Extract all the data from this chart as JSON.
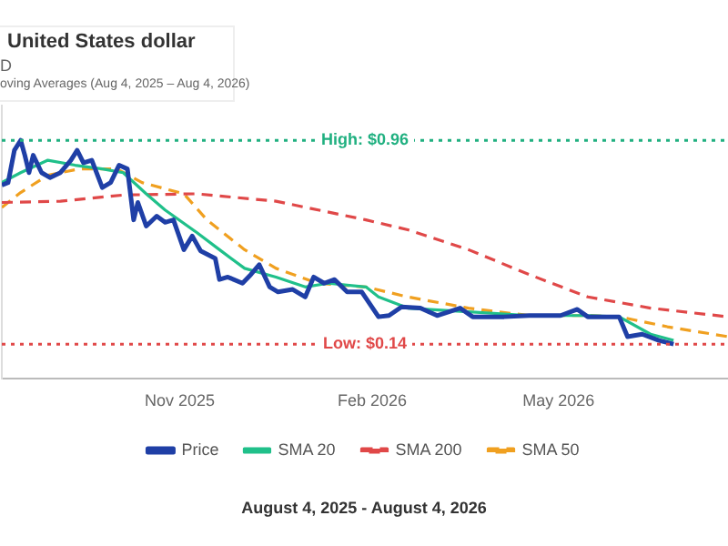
{
  "chart_data": {
    "type": "line",
    "title": "United States dollar",
    "subtitle": "oving Averages (Aug 4, 2025 – Aug 4, 2026)",
    "annotations": [
      "D",
      "August 4, 2025 - August 4, 2026"
    ],
    "xlim": [
      "2025-08-08",
      "2026-07-21"
    ],
    "xticks": [
      {
        "value": "2025-11-01",
        "label": "Nov 2025"
      },
      {
        "value": "2026-02-01",
        "label": "Feb 2026"
      },
      {
        "value": "2026-05-01",
        "label": "May 2026"
      }
    ],
    "ylim": [
      0,
      1.1
    ],
    "yticks": [
      {
        "value": 0.14,
        "label": "Low: $0.14"
      },
      {
        "value": 0.96,
        "label": "High: $0.96"
      }
    ],
    "grid": false,
    "legend": "bottom",
    "ref_lines": [
      {
        "axis": "y",
        "value": 0.96,
        "color": "#20b080",
        "line_style": "dotted"
      },
      {
        "axis": "y",
        "value": 0.14,
        "color": "#e04848",
        "line_style": "dotted"
      }
    ],
    "series": [
      {
        "name": "Price",
        "color": "#1f3fa6",
        "line_style": "solid",
        "x": [
          "2025-08-08",
          "2025-08-11",
          "2025-08-14",
          "2025-08-17",
          "2025-08-19",
          "2025-08-21",
          "2025-08-23",
          "2025-08-27",
          "2025-08-31",
          "2025-09-05",
          "2025-09-10",
          "2025-09-13",
          "2025-09-16",
          "2025-09-20",
          "2025-09-25",
          "2025-09-29",
          "2025-10-03",
          "2025-10-07",
          "2025-10-10",
          "2025-10-12",
          "2025-10-16",
          "2025-10-21",
          "2025-10-25",
          "2025-10-29",
          "2025-11-03",
          "2025-11-07",
          "2025-11-11",
          "2025-11-18",
          "2025-11-20",
          "2025-11-24",
          "2025-12-01",
          "2025-12-05",
          "2025-12-09",
          "2025-12-14",
          "2025-12-18",
          "2025-12-25",
          "2025-12-31",
          "2026-01-04",
          "2026-01-09",
          "2026-01-14",
          "2026-01-20",
          "2026-01-27",
          "2026-02-04",
          "2026-02-09",
          "2026-02-15",
          "2026-02-24",
          "2026-03-04",
          "2026-03-15",
          "2026-03-21",
          "2026-04-05",
          "2026-04-17",
          "2026-05-02",
          "2026-05-10",
          "2026-05-15",
          "2026-05-30",
          "2026-06-03",
          "2026-06-10",
          "2026-06-18",
          "2026-06-25"
        ],
        "values": [
          0.78,
          0.79,
          0.92,
          0.96,
          0.9,
          0.83,
          0.9,
          0.83,
          0.81,
          0.83,
          0.88,
          0.92,
          0.87,
          0.88,
          0.77,
          0.79,
          0.86,
          0.845,
          0.64,
          0.71,
          0.615,
          0.655,
          0.63,
          0.64,
          0.52,
          0.575,
          0.515,
          0.485,
          0.4,
          0.41,
          0.385,
          0.42,
          0.46,
          0.37,
          0.35,
          0.36,
          0.33,
          0.41,
          0.385,
          0.4,
          0.35,
          0.35,
          0.25,
          0.255,
          0.29,
          0.285,
          0.255,
          0.285,
          0.25,
          0.25,
          0.255,
          0.255,
          0.28,
          0.25,
          0.25,
          0.17,
          0.18,
          0.155,
          0.14
        ]
      },
      {
        "name": "SMA 20",
        "color": "#20c08a",
        "line_style": "solid",
        "x": [
          "2025-08-08",
          "2025-08-17",
          "2025-08-30",
          "2025-09-12",
          "2025-09-25",
          "2025-10-05",
          "2025-10-16",
          "2025-10-25",
          "2025-11-09",
          "2025-11-20",
          "2025-12-02",
          "2025-12-17",
          "2025-12-31",
          "2026-01-11",
          "2026-01-29",
          "2026-02-04",
          "2026-02-18",
          "2026-03-19",
          "2026-04-17",
          "2026-05-15",
          "2026-05-30",
          "2026-06-14",
          "2026-06-25"
        ],
        "values": [
          0.79,
          0.83,
          0.88,
          0.86,
          0.845,
          0.83,
          0.745,
          0.68,
          0.59,
          0.52,
          0.445,
          0.41,
          0.37,
          0.385,
          0.37,
          0.33,
          0.285,
          0.27,
          0.255,
          0.255,
          0.25,
          0.18,
          0.155
        ]
      },
      {
        "name": "SMA 200",
        "color": "#e04848",
        "line_style": "dashed",
        "x": [
          "2025-08-08",
          "2025-09-05",
          "2025-10-05",
          "2025-11-09",
          "2025-12-17",
          "2026-01-29",
          "2026-02-18",
          "2026-03-19",
          "2026-04-17",
          "2026-05-15",
          "2026-06-14",
          "2026-07-21"
        ],
        "values": [
          0.71,
          0.715,
          0.74,
          0.745,
          0.715,
          0.64,
          0.6,
          0.52,
          0.42,
          0.33,
          0.285,
          0.25
        ]
      },
      {
        "name": "SMA 50",
        "color": "#f0a020",
        "line_style": "dashed",
        "x": [
          "2025-08-08",
          "2025-08-17",
          "2025-08-30",
          "2025-09-14",
          "2025-10-02",
          "2025-10-14",
          "2025-11-03",
          "2025-11-14",
          "2025-12-02",
          "2025-12-17",
          "2026-01-06",
          "2026-01-29",
          "2026-02-18",
          "2026-03-19",
          "2026-04-17",
          "2026-05-15",
          "2026-05-30",
          "2026-06-22",
          "2026-07-21"
        ],
        "values": [
          0.69,
          0.75,
          0.82,
          0.845,
          0.845,
          0.79,
          0.745,
          0.64,
          0.52,
          0.445,
          0.385,
          0.37,
          0.33,
          0.285,
          0.255,
          0.255,
          0.25,
          0.21,
          0.17
        ]
      }
    ]
  }
}
